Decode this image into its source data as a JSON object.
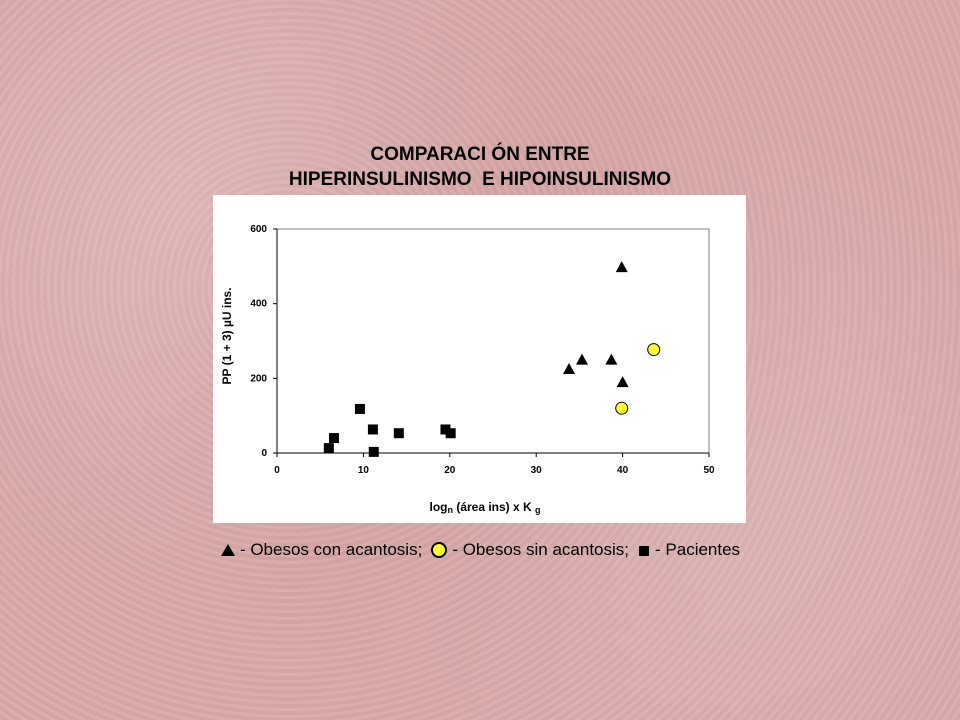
{
  "title_lines": [
    "COMPARACI ÓN ENTRE",
    "HIPERINSULINISMO  E HIPOINSULINISMO"
  ],
  "chart_data": {
    "type": "scatter",
    "title": "",
    "xlabel_main": "log",
    "xlabel_sub1": "n",
    "xlabel_mid": " (área ins) x K ",
    "xlabel_sub2": "g",
    "ylabel": "PP (1 + 3) µU ins.",
    "xlim": [
      0,
      50
    ],
    "ylim": [
      0,
      600
    ],
    "xticks": [
      "0",
      "10",
      "20",
      "30",
      "40",
      "50"
    ],
    "yticks": [
      "0",
      "200",
      "400",
      "600"
    ],
    "grid": false,
    "series": [
      {
        "name": "Obesos con acantosis",
        "marker": "triangle",
        "color": "#000000",
        "points": [
          [
            39.9,
            498
          ],
          [
            33.8,
            225
          ],
          [
            35.3,
            250
          ],
          [
            38.7,
            250
          ],
          [
            40.0,
            190
          ]
        ]
      },
      {
        "name": "Obesos sin acantosis",
        "marker": "circle",
        "color": "#ffff33",
        "points": [
          [
            43.6,
            277
          ],
          [
            39.9,
            120
          ]
        ]
      },
      {
        "name": "Pacientes",
        "marker": "square",
        "color": "#000000",
        "points": [
          [
            9.6,
            118
          ],
          [
            6.6,
            40
          ],
          [
            6.0,
            13
          ],
          [
            11.1,
            63
          ],
          [
            14.1,
            53
          ],
          [
            19.5,
            63
          ],
          [
            20.1,
            53
          ],
          [
            11.2,
            3
          ]
        ]
      }
    ]
  },
  "legend": [
    {
      "icon": "triangle-icon",
      "label": "- Obesos con acantosis;"
    },
    {
      "icon": "circle-icon",
      "label": "- Obesos sin acantosis;"
    },
    {
      "icon": "square-icon",
      "label": "- Pacientes"
    }
  ]
}
